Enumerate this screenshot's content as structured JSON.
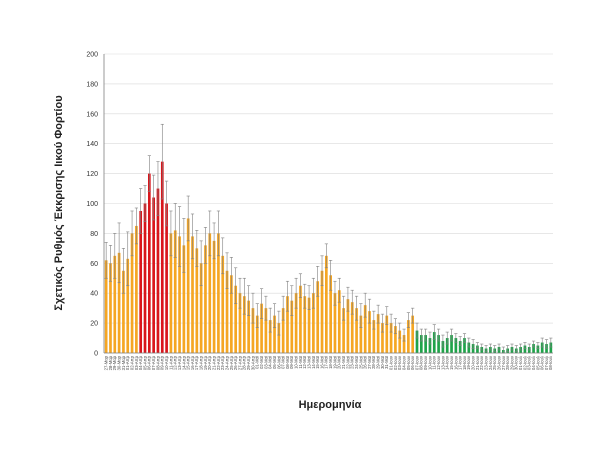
{
  "chart_data": {
    "type": "bar",
    "title": "",
    "xlabel": "Ημερομηνία",
    "ylabel": "Σχετικός Ρυθμός Έκκρισης Ιικού Φορτίου",
    "ylim": [
      0,
      200
    ],
    "yticks": [
      0,
      20,
      40,
      60,
      80,
      100,
      120,
      140,
      160,
      180,
      200
    ],
    "grid": true,
    "colors": {
      "red": "#d9151b",
      "orange": "#f5a623",
      "green": "#1fa34a",
      "error_bar": "#7f7f7f",
      "grid": "#d9d9d9",
      "axis": "#7f7f7f"
    },
    "categories": [
      "27-Μαρ",
      "28-Μαρ",
      "29-Μαρ",
      "30-Μαρ",
      "31-Μαρ",
      "01-Απρ",
      "02-Απρ",
      "03-Απρ",
      "04-Απρ",
      "05-Απρ",
      "06-Απρ",
      "07-Απρ",
      "08-Απρ",
      "09-Απρ",
      "10-Απρ",
      "11-Απρ",
      "12-Απρ",
      "13-Απρ",
      "14-Απρ",
      "15-Απρ",
      "16-Απρ",
      "17-Απρ",
      "18-Απρ",
      "19-Απρ",
      "20-Απρ",
      "21-Απρ",
      "22-Απρ",
      "23-Απρ",
      "24-Απρ",
      "25-Απρ",
      "26-Απρ",
      "27-Απρ",
      "28-Απρ",
      "29-Απρ",
      "30-Απρ",
      "01-Μαϊ",
      "02-Μαϊ",
      "03-Μαϊ",
      "04-Μαϊ",
      "05-Μαϊ",
      "06-Μαϊ",
      "07-Μαϊ",
      "08-Μαϊ",
      "09-Μαϊ",
      "10-Μαϊ",
      "11-Μαϊ",
      "12-Μαϊ",
      "13-Μαϊ",
      "14-Μαϊ",
      "15-Μαϊ",
      "16-Μαϊ",
      "17-Μαϊ",
      "18-Μαϊ",
      "19-Μαϊ",
      "20-Μαϊ",
      "21-Μαϊ",
      "22-Μαϊ",
      "23-Μαϊ",
      "24-Μαϊ",
      "25-Μαϊ",
      "26-Μαϊ",
      "27-Μαϊ",
      "28-Μαϊ",
      "29-Μαϊ",
      "30-Μαϊ",
      "31-Μαϊ",
      "01-Ιουν",
      "02-Ιουν",
      "03-Ιουν",
      "04-Ιουν",
      "05-Ιουν",
      "06-Ιουν",
      "07-Ιουν",
      "08-Ιουν",
      "09-Ιουν",
      "10-Ιουν",
      "11-Ιουν",
      "12-Ιουν",
      "13-Ιουν",
      "14-Ιουν",
      "15-Ιουν",
      "16-Ιουν",
      "17-Ιουν",
      "18-Ιουν",
      "19-Ιουν",
      "20-Ιουν",
      "21-Ιουν",
      "22-Ιουν",
      "23-Ιουν",
      "24-Ιουν",
      "25-Ιουν",
      "26-Ιουν",
      "27-Ιουν",
      "28-Ιουν",
      "29-Ιουν",
      "30-Ιουν",
      "01-Ιουλ",
      "02-Ιουλ",
      "03-Ιουλ",
      "04-Ιουλ",
      "05-Ιουλ",
      "06-Ιουλ",
      "07-Ιουλ",
      "08-Ιουλ"
    ],
    "series": [
      {
        "values": [
          62,
          60,
          65,
          67,
          55,
          63,
          80,
          85,
          95,
          100,
          120,
          104,
          110,
          128,
          100,
          80,
          82,
          78,
          72,
          90,
          78,
          70,
          60,
          72,
          80,
          75,
          80,
          65,
          55,
          52,
          45,
          40,
          38,
          35,
          30,
          25,
          33,
          30,
          22,
          25,
          20,
          30,
          38,
          35,
          40,
          45,
          38,
          37,
          40,
          48,
          55,
          65,
          52,
          40,
          42,
          30,
          36,
          34,
          30,
          25,
          32,
          28,
          22,
          26,
          20,
          25,
          20,
          18,
          15,
          12,
          22,
          25,
          15,
          12,
          12,
          10,
          14,
          12,
          8,
          10,
          12,
          10,
          8,
          10,
          7,
          6,
          5,
          4,
          3,
          4,
          3,
          4,
          2,
          3,
          4,
          3,
          4,
          5,
          4,
          6,
          5,
          7,
          6,
          7
        ],
        "errors": [
          12,
          12,
          15,
          20,
          15,
          18,
          15,
          12,
          15,
          12,
          12,
          15,
          18,
          25,
          15,
          15,
          18,
          20,
          18,
          15,
          15,
          12,
          15,
          12,
          15,
          12,
          15,
          12,
          12,
          12,
          12,
          10,
          12,
          10,
          10,
          8,
          10,
          8,
          8,
          8,
          8,
          8,
          10,
          10,
          10,
          8,
          8,
          8,
          10,
          10,
          10,
          8,
          10,
          8,
          8,
          8,
          8,
          8,
          8,
          8,
          8,
          8,
          6,
          6,
          6,
          6,
          6,
          5,
          5,
          4,
          5,
          5,
          5,
          4,
          4,
          4,
          5,
          4,
          4,
          4,
          4,
          3,
          3,
          3,
          3,
          3,
          2,
          2,
          2,
          2,
          2,
          2,
          2,
          2,
          2,
          2,
          2,
          2,
          2,
          2,
          2,
          3,
          3,
          3
        ],
        "colors": [
          "orange",
          "orange",
          "orange",
          "orange",
          "orange",
          "orange",
          "orange",
          "orange",
          "red",
          "red",
          "red",
          "red",
          "red",
          "red",
          "red",
          "orange",
          "orange",
          "orange",
          "orange",
          "orange",
          "orange",
          "orange",
          "orange",
          "orange",
          "orange",
          "orange",
          "orange",
          "orange",
          "orange",
          "orange",
          "orange",
          "orange",
          "orange",
          "orange",
          "orange",
          "orange",
          "orange",
          "orange",
          "orange",
          "orange",
          "orange",
          "orange",
          "orange",
          "orange",
          "orange",
          "orange",
          "orange",
          "orange",
          "orange",
          "orange",
          "orange",
          "orange",
          "orange",
          "orange",
          "orange",
          "orange",
          "orange",
          "orange",
          "orange",
          "orange",
          "orange",
          "orange",
          "orange",
          "orange",
          "orange",
          "orange",
          "orange",
          "orange",
          "orange",
          "orange",
          "orange",
          "orange",
          "green",
          "green",
          "green",
          "green",
          "green",
          "green",
          "green",
          "green",
          "green",
          "green",
          "green",
          "green",
          "green",
          "green",
          "green",
          "green",
          "green",
          "green",
          "green",
          "green",
          "green",
          "green",
          "green",
          "green",
          "green",
          "green",
          "green",
          "green",
          "green",
          "green",
          "green",
          "green"
        ]
      }
    ]
  }
}
